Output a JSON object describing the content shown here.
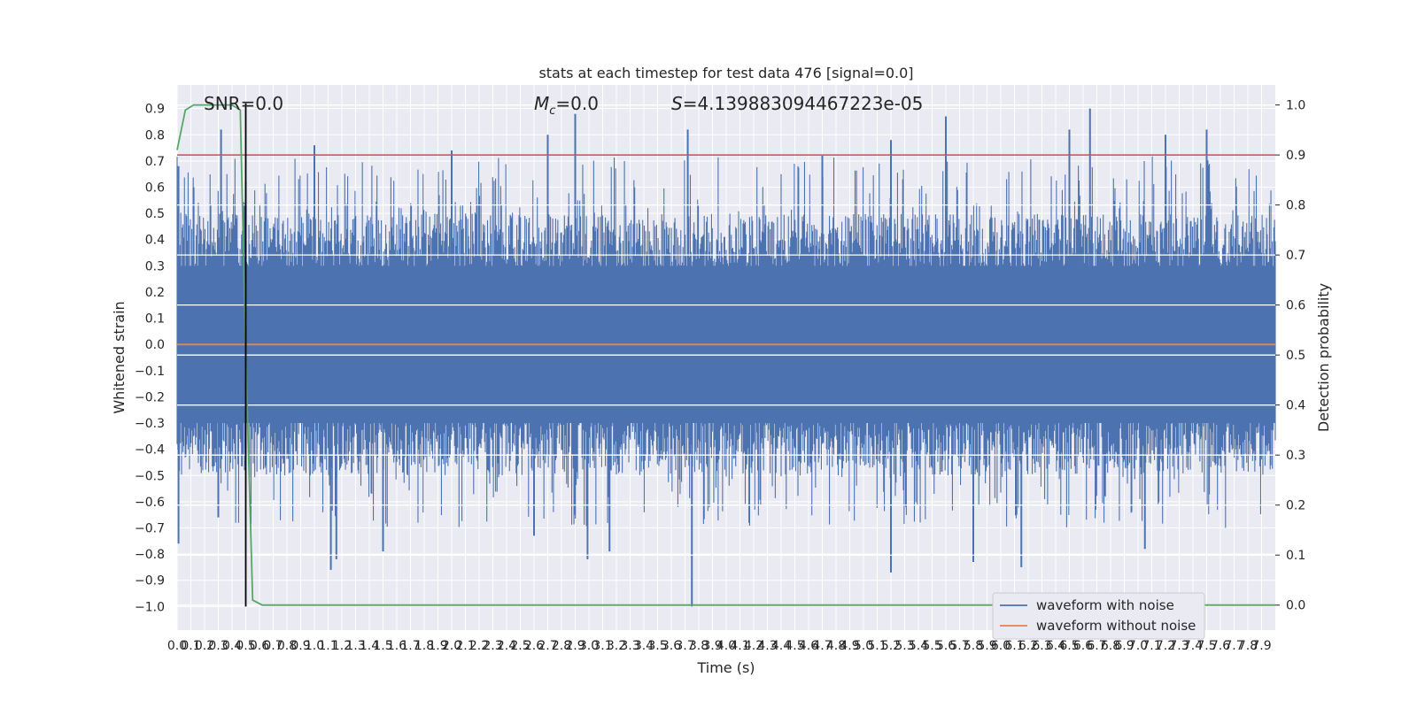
{
  "chart_data": {
    "type": "line",
    "title": "stats at each timestep for test data 476 [signal=0.0]",
    "xlabel": "Time (s)",
    "ylabel": "Whitened strain",
    "y2label": "Detection probability",
    "xlim": [
      0.0,
      8.0
    ],
    "ylim": [
      -1.09,
      0.99
    ],
    "y2lim": [
      -0.05,
      1.04
    ],
    "x_ticks": [
      "0.0",
      "0.1",
      "0.2",
      "0.3",
      "0.4",
      "0.5",
      "0.6",
      "0.7",
      "0.8",
      "0.9",
      "1.0",
      "1.1",
      "1.2",
      "1.3",
      "1.4",
      "1.5",
      "1.6",
      "1.7",
      "1.8",
      "1.9",
      "2.0",
      "2.1",
      "2.2",
      "2.3",
      "2.4",
      "2.5",
      "2.6",
      "2.7",
      "2.8",
      "2.9",
      "3.0",
      "3.1",
      "3.2",
      "3.3",
      "3.4",
      "3.5",
      "3.6",
      "3.7",
      "3.8",
      "3.9",
      "4.0",
      "4.1",
      "4.2",
      "4.3",
      "4.4",
      "4.5",
      "4.6",
      "4.7",
      "4.8",
      "4.9",
      "5.0",
      "5.1",
      "5.2",
      "5.3",
      "5.4",
      "5.5",
      "5.6",
      "5.7",
      "5.8",
      "5.9",
      "6.0",
      "6.1",
      "6.2",
      "6.3",
      "6.4",
      "6.5",
      "6.6",
      "6.7",
      "6.8",
      "6.9",
      "7.0",
      "7.1",
      "7.2",
      "7.3",
      "7.4",
      "7.5",
      "7.6",
      "7.7",
      "7.8",
      "7.9"
    ],
    "y_ticks": [
      "0.9",
      "0.8",
      "0.7",
      "0.6",
      "0.5",
      "0.4",
      "0.3",
      "0.2",
      "0.1",
      "0.0",
      "−0.1",
      "−0.2",
      "−0.3",
      "−0.4",
      "−0.5",
      "−0.6",
      "−0.7",
      "−0.8",
      "−0.9",
      "−1.0"
    ],
    "y2_ticks": [
      "1.0",
      "0.9",
      "0.8",
      "0.7",
      "0.6",
      "0.5",
      "0.4",
      "0.3",
      "0.2",
      "0.1",
      "0.0"
    ],
    "annotations": {
      "snr": "SNR=0.0",
      "mc_symbol": "M",
      "mc_sub": "c",
      "mc_value": "=0.0",
      "s_symbol": "S",
      "s_value": "=4.139883094467223e-05"
    },
    "legend": {
      "placement": "lower right",
      "items": [
        {
          "name": "waveform with noise",
          "color": "#4c72b0"
        },
        {
          "name": "waveform without noise",
          "color": "#dd8452"
        }
      ]
    },
    "series": [
      {
        "name": "waveform with noise",
        "color": "#4c72b0",
        "axis": "left",
        "envelope_approx": {
          "upper": 0.45,
          "lower": -0.45
        },
        "peaks": [
          [
            0.01,
            0.68
          ],
          [
            0.12,
            0.6
          ],
          [
            0.32,
            0.82
          ],
          [
            0.5,
            0.62
          ],
          [
            1.0,
            0.76
          ],
          [
            2.0,
            0.74
          ],
          [
            2.7,
            0.8
          ],
          [
            2.9,
            0.88
          ],
          [
            3.72,
            0.82
          ],
          [
            4.7,
            0.72
          ],
          [
            5.2,
            0.78
          ],
          [
            5.6,
            0.87
          ],
          [
            6.5,
            0.82
          ],
          [
            6.65,
            0.9
          ],
          [
            7.2,
            0.8
          ],
          [
            7.5,
            0.82
          ]
        ],
        "troughs": [
          [
            0.01,
            -0.76
          ],
          [
            0.3,
            -0.66
          ],
          [
            1.12,
            -0.86
          ],
          [
            1.16,
            -0.82
          ],
          [
            1.5,
            -0.79
          ],
          [
            2.6,
            -0.73
          ],
          [
            2.99,
            -0.82
          ],
          [
            3.15,
            -0.79
          ],
          [
            3.75,
            -1.0
          ],
          [
            5.2,
            -0.87
          ],
          [
            5.8,
            -0.83
          ],
          [
            6.15,
            -0.85
          ],
          [
            7.05,
            -0.78
          ]
        ]
      },
      {
        "name": "waveform without noise",
        "color": "#dd8452",
        "axis": "left",
        "x": [
          0.0,
          8.0
        ],
        "y": [
          0.0,
          0.0
        ]
      },
      {
        "name": "",
        "color": "#55a868",
        "axis": "right",
        "x": [
          0.0,
          0.06,
          0.12,
          0.2,
          0.3,
          0.4,
          0.46,
          0.5,
          0.55,
          0.62,
          0.7,
          1.0,
          8.0
        ],
        "y": [
          0.91,
          0.99,
          1.0,
          1.0,
          1.0,
          1.0,
          0.99,
          0.5,
          0.01,
          0.0,
          0.0,
          0.0,
          0.0
        ]
      },
      {
        "name": "",
        "color": "#c44e52",
        "axis": "right",
        "x": [
          0.0,
          8.0
        ],
        "y": [
          0.9,
          0.9
        ]
      },
      {
        "name": "",
        "color": "#000000",
        "axis": "left",
        "x": [
          0.5,
          0.5
        ],
        "y": [
          -1.0,
          0.92
        ]
      }
    ]
  }
}
